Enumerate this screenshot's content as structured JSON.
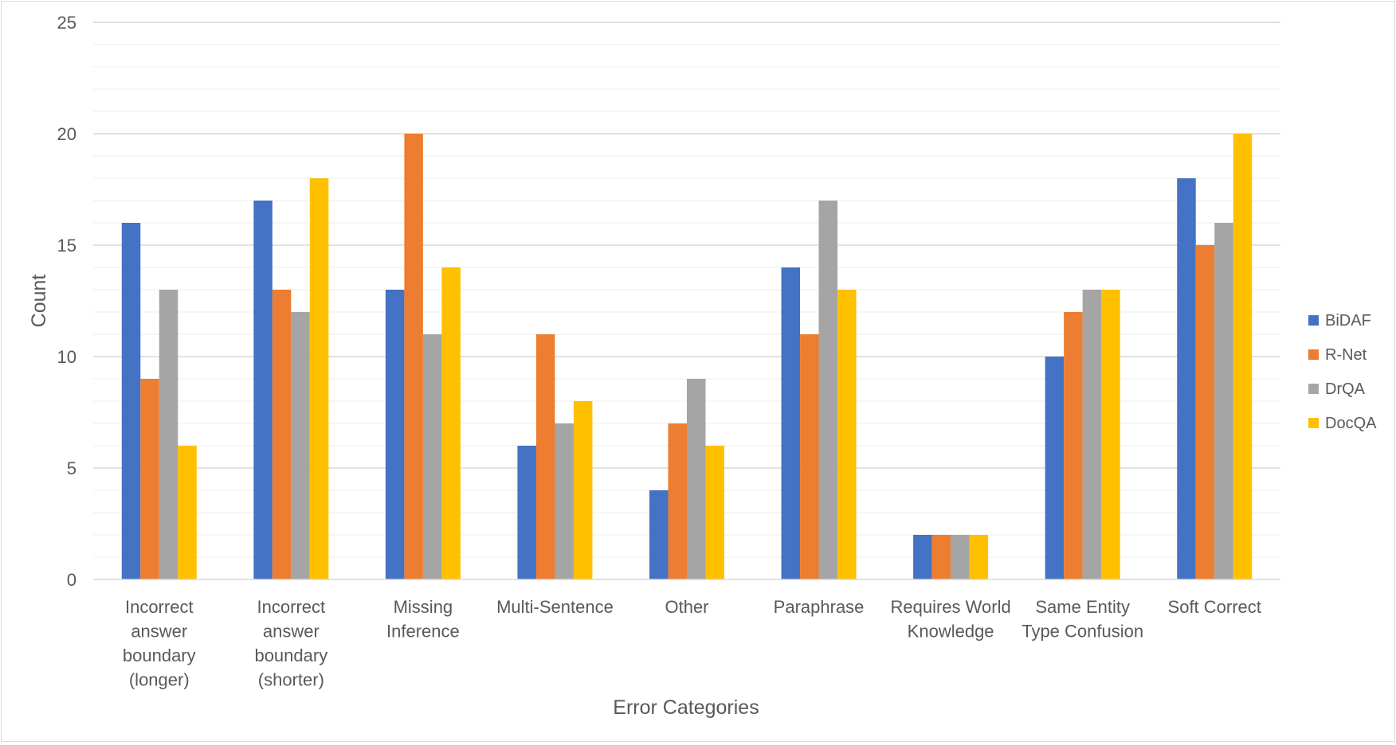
{
  "chart_data": {
    "type": "bar",
    "title": "",
    "xlabel": "Error Categories",
    "ylabel": "Count",
    "ylim": [
      0,
      25
    ],
    "y_ticks": [
      "0",
      "5",
      "10",
      "15",
      "20",
      "25"
    ],
    "grid": true,
    "legend_position": "right",
    "categories": [
      [
        "Incorrect",
        "answer",
        "boundary",
        "(longer)"
      ],
      [
        "Incorrect",
        "answer",
        "boundary",
        "(shorter)"
      ],
      [
        "Missing",
        "Inference"
      ],
      [
        "Multi-Sentence"
      ],
      [
        "Other"
      ],
      [
        "Paraphrase"
      ],
      [
        "Requires World",
        "Knowledge"
      ],
      [
        "Same Entity",
        "Type Confusion"
      ],
      [
        "Soft Correct"
      ]
    ],
    "series": [
      {
        "name": "BiDAF",
        "color": "#4472c4",
        "values": [
          16,
          17,
          13,
          6,
          4,
          14,
          2,
          10,
          18
        ]
      },
      {
        "name": "R-Net",
        "color": "#ed7d31",
        "values": [
          9,
          13,
          20,
          11,
          7,
          11,
          2,
          12,
          15
        ]
      },
      {
        "name": "DrQA",
        "color": "#a5a5a5",
        "values": [
          13,
          12,
          11,
          7,
          9,
          17,
          2,
          13,
          16
        ]
      },
      {
        "name": "DocQA",
        "color": "#ffc000",
        "values": [
          6,
          18,
          14,
          8,
          6,
          13,
          2,
          13,
          20
        ]
      }
    ]
  }
}
